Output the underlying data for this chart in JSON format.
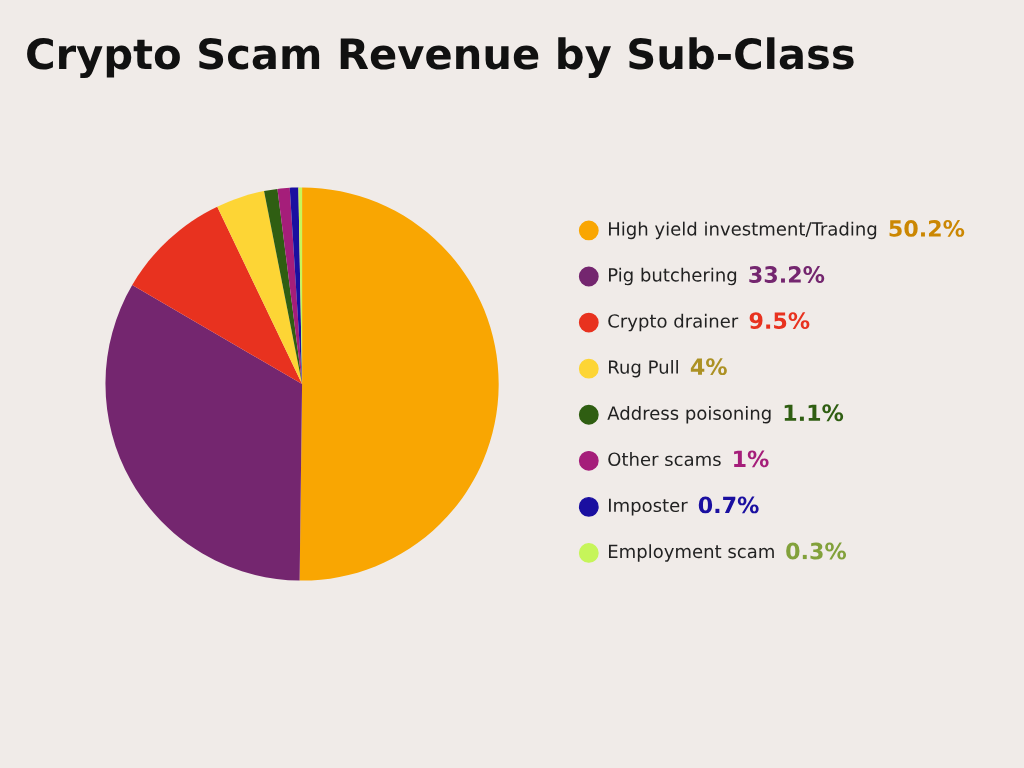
{
  "chart_data": {
    "type": "pie",
    "title": "Crypto Scam Revenue by Sub-Class",
    "categories": [
      "High yield investment/Trading",
      "Pig butchering",
      "Crypto drainer",
      "Rug Pull",
      "Address poisoning",
      "Other scams",
      "Imposter",
      "Employment scam"
    ],
    "values": [
      50.2,
      33.2,
      9.5,
      4,
      1.1,
      1,
      0.7,
      0.3
    ],
    "value_labels": [
      "50.2%",
      "33.2%",
      "9.5%",
      "4%",
      "1.1%",
      "1%",
      "0.7%",
      "0.3%"
    ],
    "colors": [
      "#f9a602",
      "#74266f",
      "#e8321f",
      "#fdd535",
      "#2f5e12",
      "#a51e7a",
      "#1a0fa0",
      "#c6f55a"
    ],
    "legend": "right"
  }
}
